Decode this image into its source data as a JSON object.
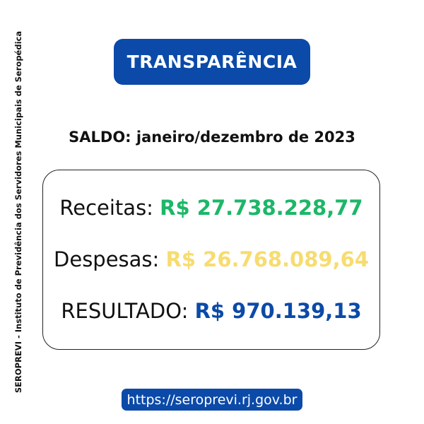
{
  "side_text": "SEROPREVI - Instituto de Previdência dos Servidores Municipais de Seropédica",
  "banner": "TRANSPARÊNCIA",
  "saldo": "SALDO: janeiro/dezembro de 2023",
  "rows": [
    {
      "label": "Receitas: ",
      "value": "R$ 27.738.228,77",
      "color": "#1cb768"
    },
    {
      "label": "Despesas: ",
      "value": "R$ 26.768.089,64",
      "color": "#f7dc6f"
    },
    {
      "label": "RESULTADO: ",
      "value": "R$ 970.139,13",
      "color": "#0b4aa8"
    }
  ],
  "url": "https://seroprevi.rj.gov.br",
  "colors": {
    "brand": "#0b4aa8"
  }
}
